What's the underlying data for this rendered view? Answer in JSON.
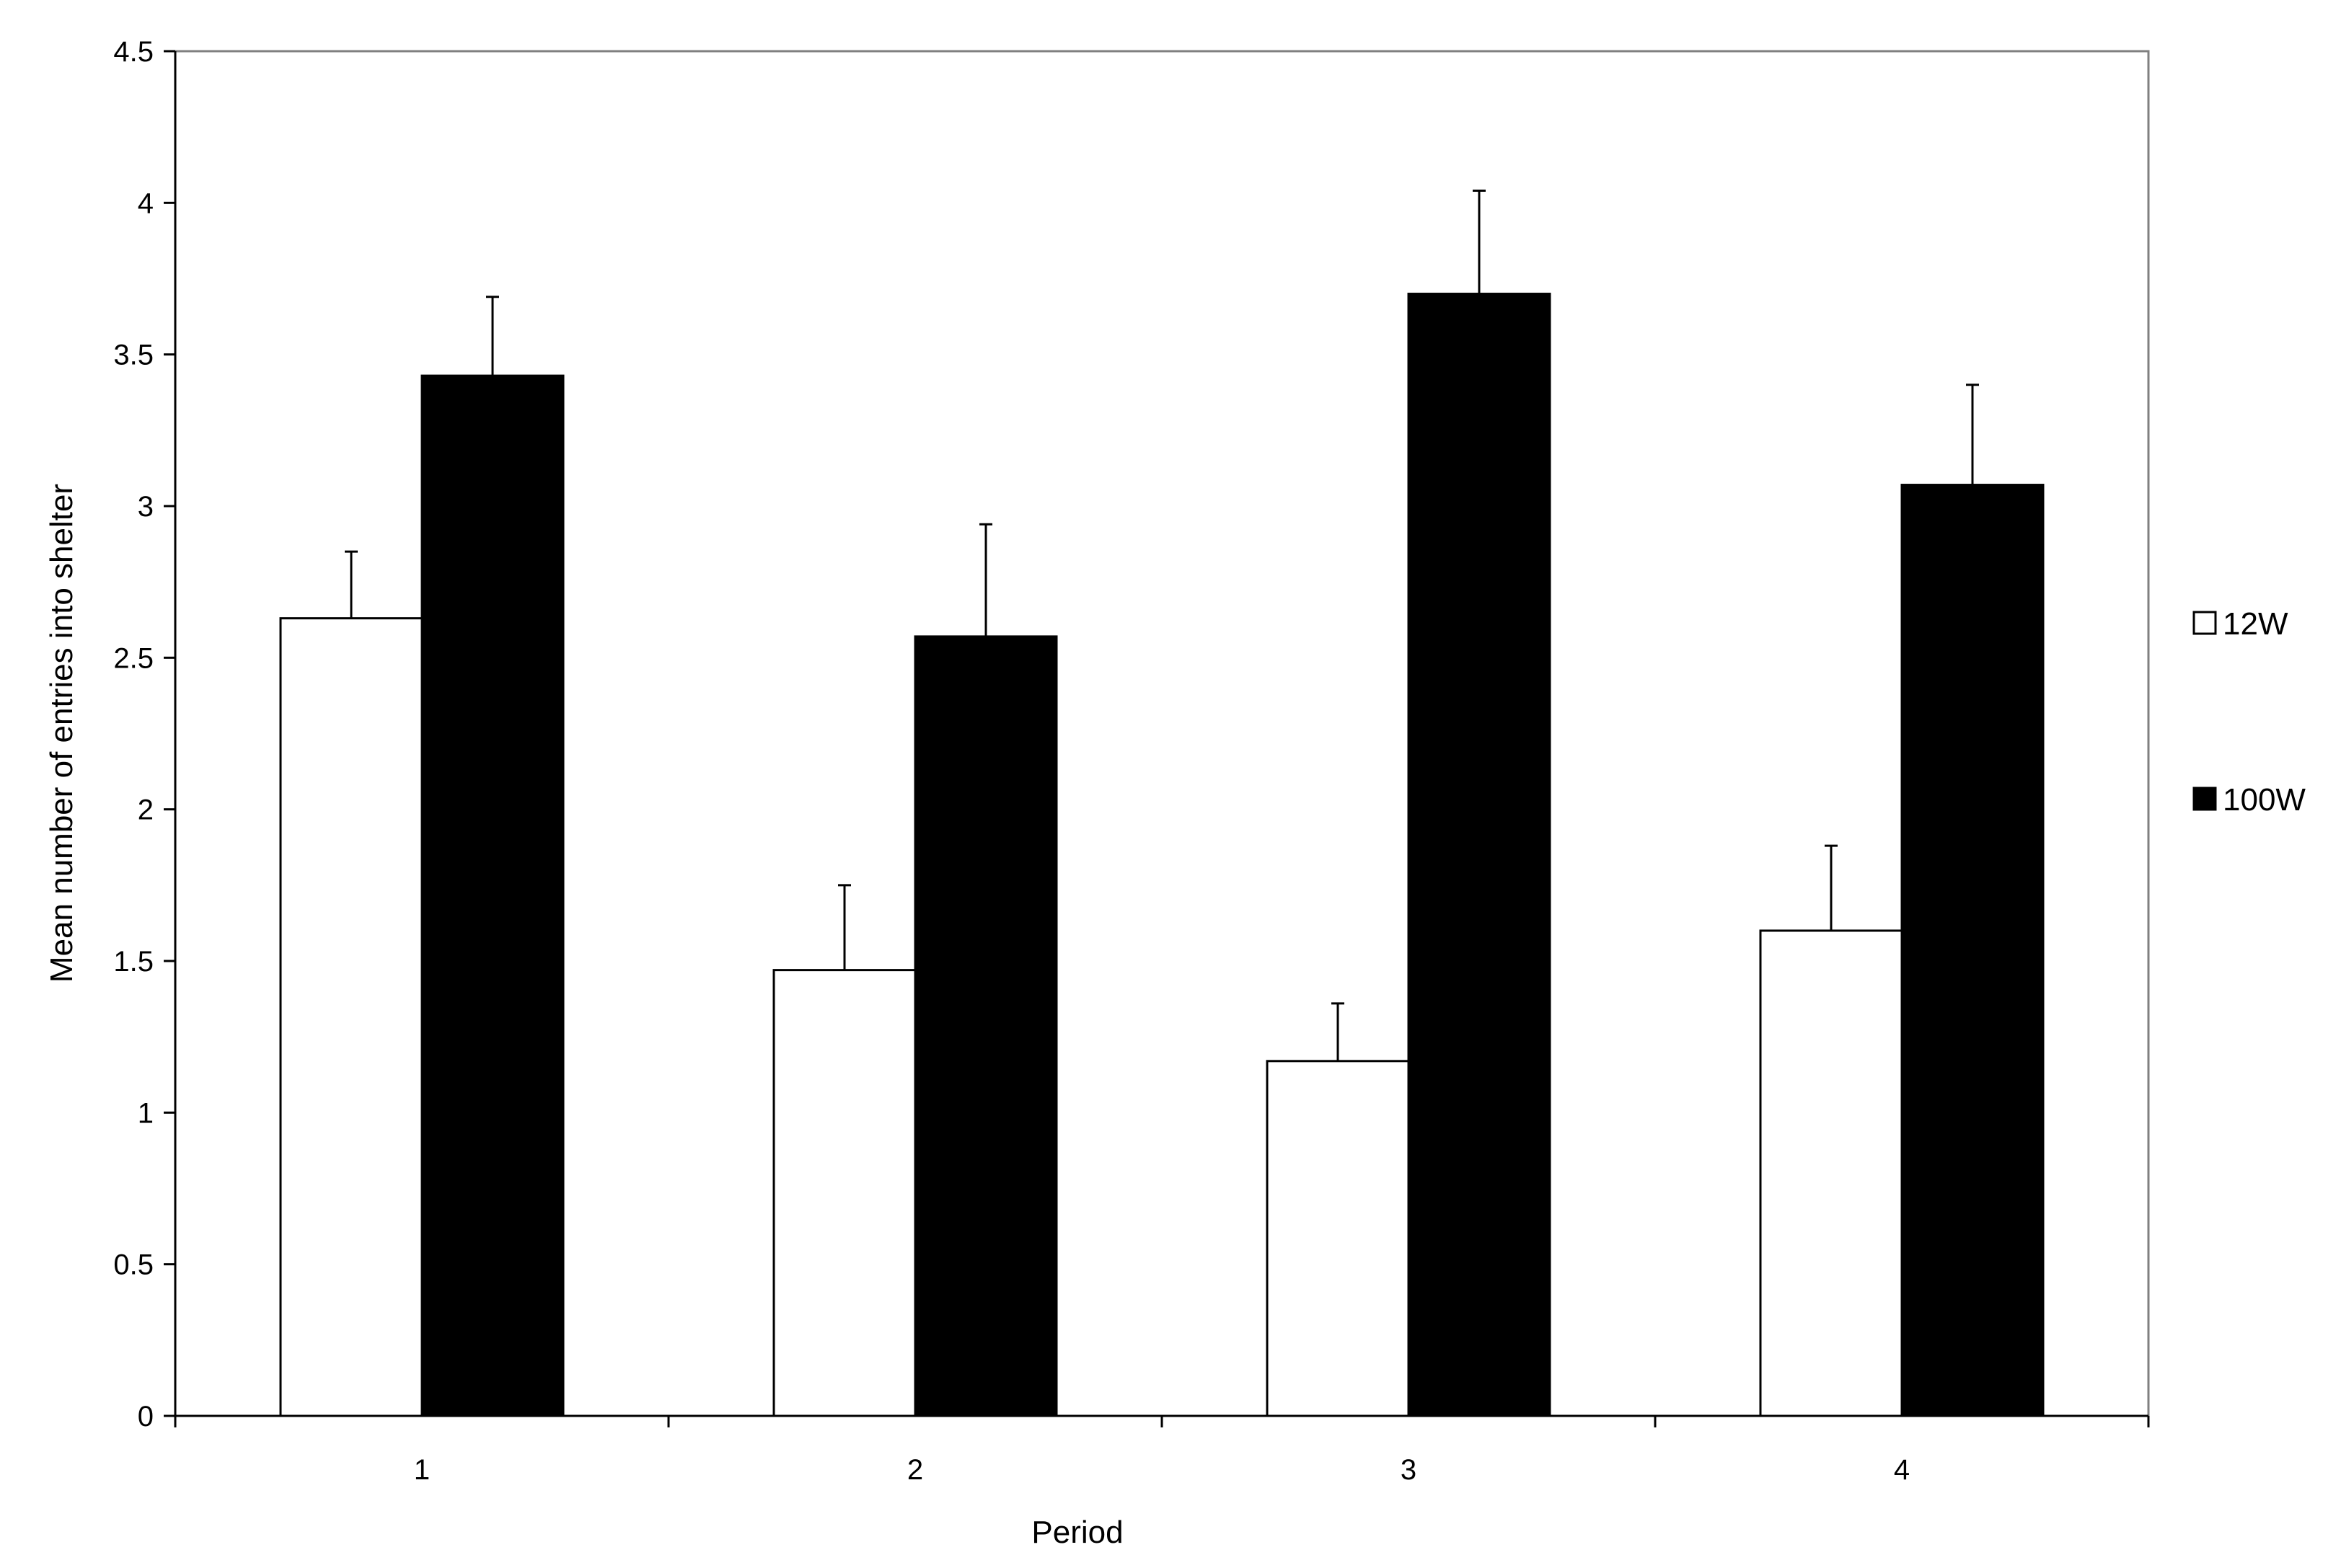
{
  "chart_data": {
    "type": "bar",
    "categories": [
      "1",
      "2",
      "3",
      "4"
    ],
    "series": [
      {
        "name": "12W",
        "values": [
          2.63,
          1.47,
          1.17,
          1.6
        ],
        "errors": [
          0.22,
          0.28,
          0.19,
          0.28
        ],
        "color": "#ffffff"
      },
      {
        "name": "100W",
        "values": [
          3.43,
          2.57,
          3.7,
          3.07
        ],
        "errors": [
          0.26,
          0.37,
          0.34,
          0.33
        ],
        "color": "#000000"
      }
    ],
    "xlabel": "Period",
    "ylabel": "Mean number of entries into shelter",
    "ylim": [
      0,
      4.5
    ],
    "yticks": [
      "0",
      "0.5",
      "1",
      "1.5",
      "2",
      "2.5",
      "3",
      "3.5",
      "4",
      "4.5"
    ],
    "grid": false,
    "legend_position": "right"
  }
}
